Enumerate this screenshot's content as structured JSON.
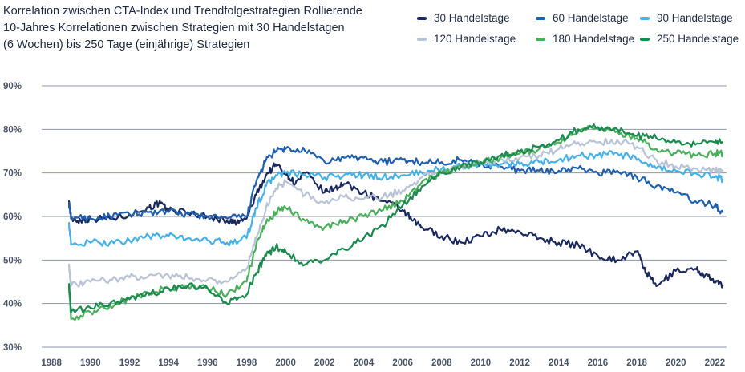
{
  "chart_data": {
    "type": "line",
    "title_lines": [
      "Korrelation zwischen CTA-Index und Trendfolgestrategien Rollierende",
      "10-Jahres Korrelationen zwischen Strategien mit 30 Handelstagen",
      "(6 Wochen) bis 250 Tage (einjährige) Strategien"
    ],
    "xlabel": "",
    "ylabel": "",
    "xlim": [
      1987.5,
      2022.6
    ],
    "ylim": [
      30,
      90
    ],
    "x_ticks": [
      "1988",
      "1990",
      "1992",
      "1994",
      "1996",
      "1998",
      "2000",
      "2002",
      "2004",
      "2006",
      "2008",
      "2010",
      "2012",
      "2014",
      "2016",
      "2018",
      "2020",
      "2022"
    ],
    "y_ticks": [
      "90%",
      "80%",
      "70%",
      "60%",
      "50%",
      "40%",
      "30%"
    ],
    "grid": true,
    "legend_position": "top-right",
    "series": [
      {
        "name": "30 Handelstage",
        "color": "#1b2a5e",
        "x": [
          1988.9,
          1989.0,
          1989.5,
          1990,
          1991,
          1992,
          1993,
          1993.5,
          1994,
          1995,
          1996,
          1997,
          1997.5,
          1998,
          1998.5,
          1999,
          1999.5,
          2000,
          2000.5,
          2001,
          2002,
          2002.5,
          2003,
          2004,
          2005,
          2006,
          2006.5,
          2007,
          2008,
          2009,
          2010,
          2011,
          2012,
          2013,
          2014,
          2015,
          2016,
          2017,
          2018,
          2018.5,
          2019,
          2020,
          2021,
          2021.5,
          2022,
          2022.4
        ],
        "values": [
          63.5,
          59.5,
          59.0,
          59.5,
          59.5,
          60.5,
          62.0,
          63.0,
          61.5,
          61.0,
          60.0,
          59.0,
          58.5,
          59.5,
          65.0,
          69.5,
          72.0,
          70.0,
          67.5,
          70.0,
          65.5,
          66.5,
          67.5,
          65.5,
          63.5,
          61.5,
          59.0,
          57.5,
          55.5,
          54.0,
          55.5,
          57.0,
          56.5,
          55.0,
          54.0,
          53.5,
          51.0,
          50.0,
          52.0,
          47.0,
          44.0,
          47.5,
          48.0,
          46.5,
          45.0,
          44.0
        ]
      },
      {
        "name": "60 Handelstage",
        "color": "#1f5fae",
        "x": [
          1988.9,
          1989.0,
          1990,
          1991,
          1992,
          1993,
          1994,
          1995,
          1996,
          1997,
          1998,
          1998.5,
          1999,
          1999.5,
          2000,
          2001,
          2002,
          2003,
          2004,
          2005,
          2006,
          2007,
          2008,
          2009,
          2010,
          2011,
          2012,
          2013,
          2014,
          2015,
          2016,
          2017,
          2018,
          2019,
          2020,
          2021,
          2022,
          2022.4
        ],
        "values": [
          63.0,
          60.0,
          59.5,
          60.0,
          60.5,
          61.0,
          61.0,
          60.5,
          60.0,
          59.5,
          60.0,
          68.0,
          73.0,
          75.0,
          75.5,
          75.0,
          72.5,
          73.5,
          73.5,
          72.5,
          73.0,
          72.5,
          72.5,
          73.0,
          72.0,
          71.5,
          70.5,
          70.5,
          70.5,
          71.0,
          70.0,
          70.5,
          69.0,
          67.0,
          65.5,
          63.5,
          62.5,
          61.0
        ]
      },
      {
        "name": "90 Handelstage",
        "color": "#45b1e6",
        "x": [
          1988.9,
          1989.0,
          1990,
          1991,
          1992,
          1993,
          1994,
          1995,
          1996,
          1997,
          1998,
          1998.5,
          1999,
          1999.5,
          2000,
          2001,
          2002,
          2003,
          2004,
          2005,
          2006,
          2007,
          2008,
          2009,
          2010,
          2011,
          2012,
          2013,
          2014,
          2015,
          2016,
          2017,
          2018,
          2019,
          2020,
          2021,
          2022,
          2022.4
        ],
        "values": [
          58.5,
          53.5,
          54.0,
          54.0,
          54.5,
          55.5,
          55.5,
          55.0,
          54.5,
          54.0,
          55.0,
          62.0,
          67.0,
          69.5,
          70.0,
          69.5,
          69.0,
          69.5,
          69.5,
          69.0,
          69.5,
          70.0,
          71.0,
          71.5,
          72.0,
          72.0,
          72.0,
          72.5,
          73.0,
          74.0,
          74.0,
          74.5,
          73.0,
          71.0,
          70.5,
          70.0,
          69.0,
          68.5
        ]
      },
      {
        "name": "120 Handelstage",
        "color": "#b9c3d6",
        "x": [
          1988.9,
          1989.0,
          1990,
          1991,
          1992,
          1993,
          1994,
          1995,
          1996,
          1997,
          1998,
          1998.5,
          1999,
          1999.5,
          2000,
          2001,
          2002,
          2003,
          2004,
          2005,
          2006,
          2007,
          2008,
          2009,
          2010,
          2011,
          2012,
          2013,
          2014,
          2015,
          2016,
          2017,
          2018,
          2019,
          2020,
          2021,
          2022,
          2022.4
        ],
        "values": [
          49.0,
          44.0,
          45.0,
          45.5,
          46.0,
          46.5,
          46.5,
          46.0,
          45.5,
          45.0,
          48.0,
          55.0,
          62.0,
          66.5,
          68.0,
          65.0,
          63.0,
          64.5,
          64.0,
          64.5,
          66.0,
          69.0,
          70.5,
          71.5,
          72.5,
          73.0,
          73.5,
          74.0,
          75.5,
          77.0,
          77.0,
          77.5,
          76.0,
          73.0,
          71.5,
          71.0,
          70.5,
          70.5
        ]
      },
      {
        "name": "180 Handelstage",
        "color": "#4aae5a",
        "x": [
          1988.9,
          1989.0,
          1990,
          1991,
          1992,
          1993,
          1994,
          1995,
          1996,
          1997,
          1998,
          1998.5,
          1999,
          1999.5,
          2000,
          2001,
          2002,
          2003,
          2004,
          2005,
          2006,
          2007,
          2008,
          2009,
          2010,
          2011,
          2012,
          2013,
          2014,
          2015,
          2016,
          2017,
          2018,
          2019,
          2020,
          2021,
          2022,
          2022.4
        ],
        "values": [
          44.0,
          36.5,
          38.0,
          39.5,
          41.0,
          42.5,
          43.5,
          44.0,
          43.5,
          42.0,
          45.0,
          53.5,
          58.5,
          61.0,
          62.0,
          59.0,
          57.5,
          59.0,
          60.0,
          61.5,
          63.5,
          68.0,
          70.0,
          71.5,
          72.5,
          73.5,
          74.5,
          75.5,
          77.0,
          79.5,
          80.5,
          79.5,
          78.0,
          75.5,
          74.5,
          74.0,
          74.5,
          74.5
        ]
      },
      {
        "name": "250 Handelstage",
        "color": "#1a8a4e",
        "x": [
          1988.9,
          1989.0,
          1990,
          1991,
          1992,
          1993,
          1994,
          1995,
          1996,
          1997,
          1998,
          1998.5,
          1999,
          1999.5,
          2000,
          2001,
          2002,
          2003,
          2004,
          2005,
          2006,
          2007,
          2008,
          2009,
          2010,
          2011,
          2012,
          2013,
          2014,
          2015,
          2016,
          2017,
          2018,
          2019,
          2020,
          2021,
          2022,
          2022.4
        ],
        "values": [
          44.5,
          38.0,
          39.0,
          40.0,
          41.0,
          42.0,
          43.5,
          44.0,
          43.5,
          40.0,
          42.0,
          47.0,
          51.0,
          53.0,
          52.0,
          49.0,
          50.0,
          52.5,
          55.0,
          58.0,
          62.5,
          67.0,
          70.0,
          71.5,
          72.5,
          74.0,
          75.0,
          76.0,
          77.5,
          80.0,
          80.5,
          80.0,
          78.5,
          78.0,
          77.0,
          76.5,
          77.0,
          77.0
        ]
      }
    ]
  }
}
